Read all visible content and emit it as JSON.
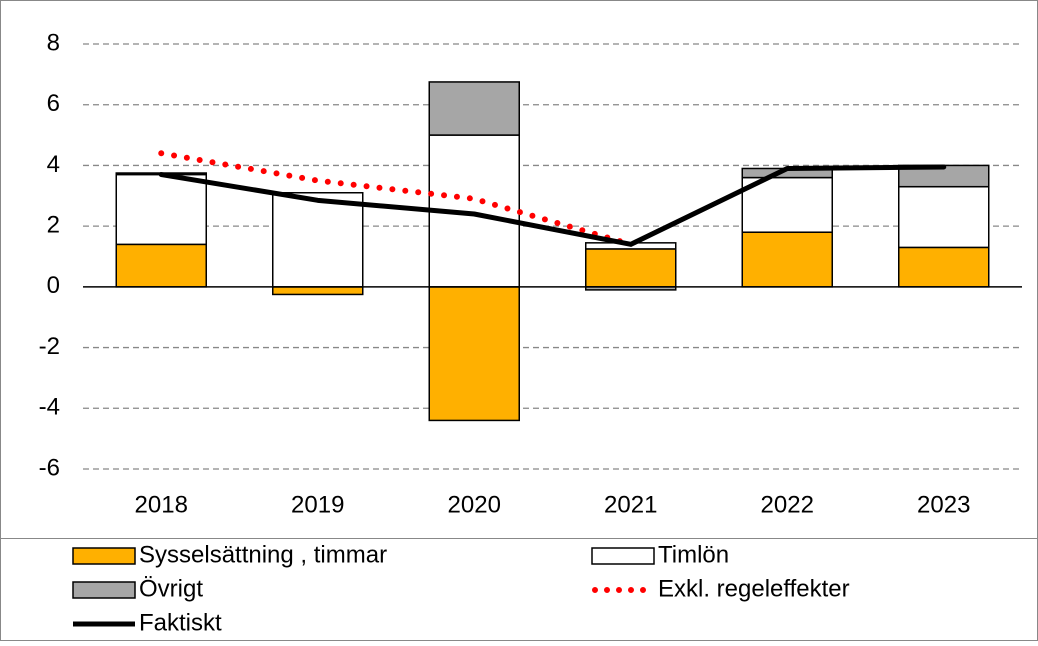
{
  "chart_data": {
    "type": "bar",
    "categories": [
      "2018",
      "2019",
      "2020",
      "2021",
      "2022",
      "2023"
    ],
    "series": [
      {
        "name": "Sysselsättning , timmar",
        "type": "bar",
        "color": "#ffb000",
        "values": [
          1.4,
          -0.25,
          -4.4,
          1.25,
          1.8,
          1.3
        ]
      },
      {
        "name": "Timlön",
        "type": "bar",
        "color": "#ffffff",
        "values": [
          2.3,
          3.1,
          5.0,
          0.2,
          1.8,
          2.0
        ]
      },
      {
        "name": "Övrigt",
        "type": "bar",
        "color": "#a6a6a6",
        "values": [
          0.05,
          0,
          1.75,
          -0.1,
          0.3,
          0.7
        ]
      },
      {
        "name": "Exkl. regeleffekter",
        "type": "line",
        "style": "dotted",
        "color": "#ff0000",
        "values": [
          4.4,
          3.5,
          2.9,
          1.4,
          null,
          null
        ]
      },
      {
        "name": "Faktiskt",
        "type": "line",
        "style": "solid",
        "color": "#000000",
        "values": [
          3.7,
          2.85,
          2.4,
          1.4,
          3.9,
          3.95
        ]
      }
    ],
    "ylim": [
      -6,
      8
    ],
    "yticks": [
      -6,
      -4,
      -2,
      0,
      2,
      4,
      6,
      8
    ],
    "grid": true,
    "legend": "bottom"
  }
}
